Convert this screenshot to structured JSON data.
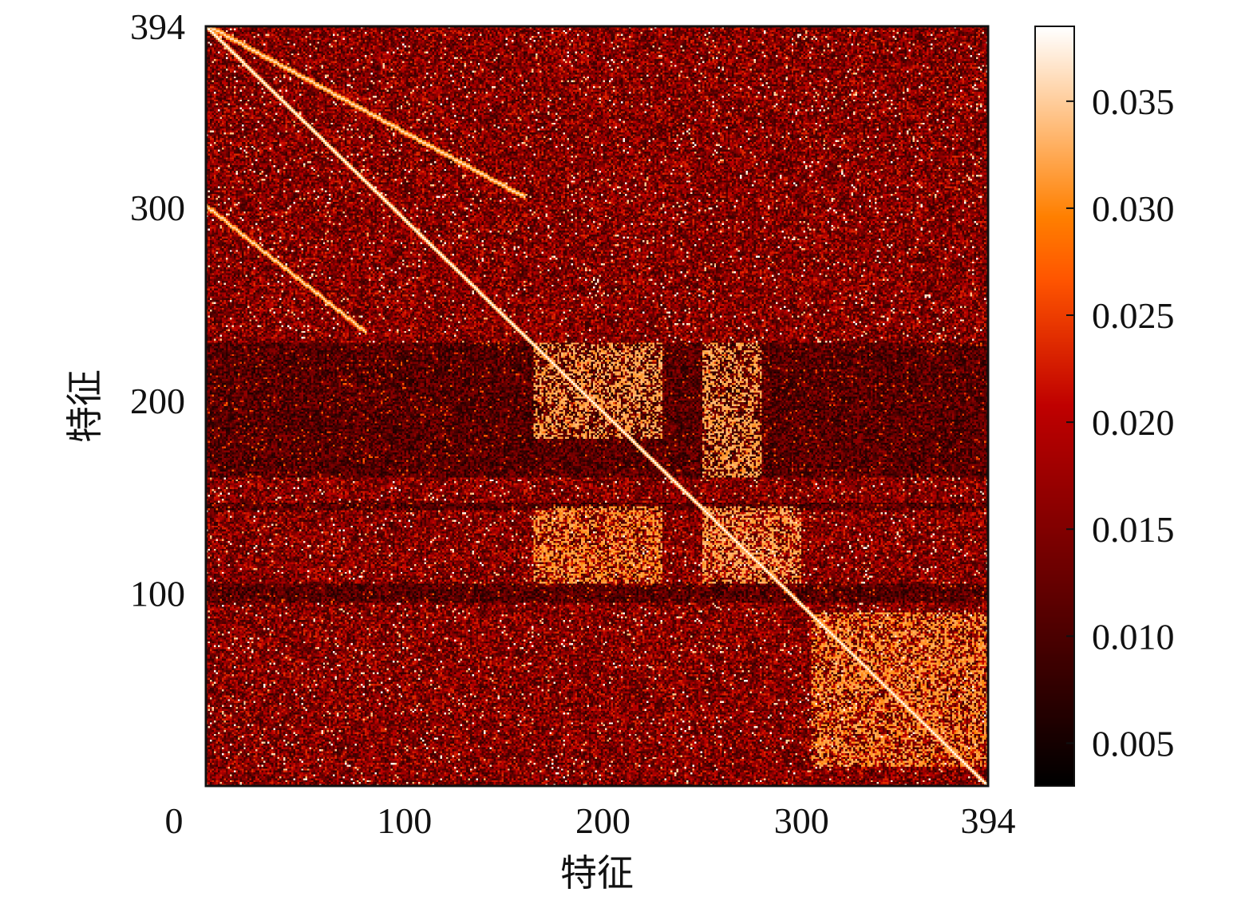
{
  "chart_data": {
    "type": "heatmap",
    "title": "",
    "xlabel": "特征",
    "ylabel": "特征",
    "n_features": 394,
    "xlim": [
      0,
      394
    ],
    "ylim": [
      0,
      394
    ],
    "x_ticks": [
      0,
      100,
      200,
      300,
      394
    ],
    "x_tick_labels": [
      "0",
      "100",
      "200",
      "300",
      "394"
    ],
    "y_ticks": [
      100,
      200,
      300,
      394
    ],
    "y_tick_labels": [
      "100",
      "200",
      "300",
      "394"
    ],
    "colorbar": {
      "colormap": "gist_heat",
      "vmin": 0.003,
      "vmax": 0.0385,
      "ticks": [
        0.005,
        0.01,
        0.015,
        0.02,
        0.025,
        0.03,
        0.035
      ],
      "tick_labels": [
        "0.005",
        "0.010",
        "0.015",
        "0.020",
        "0.025",
        "0.030",
        "0.035"
      ]
    },
    "grid": false,
    "diagonal_value": 0.0385,
    "background_value_range": [
      0.008,
      0.024
    ],
    "off_diagonal_bands": [
      {
        "x_range": [
          0,
          160
        ],
        "y_range": [
          394,
          305
        ],
        "value": 0.036
      },
      {
        "x_range": [
          0,
          80
        ],
        "y_range": [
          300,
          235
        ],
        "value": 0.036
      }
    ],
    "high_value_blocks": [
      {
        "x_range": [
          165,
          230
        ],
        "y_range": [
          230,
          180
        ],
        "value": 0.034
      },
      {
        "x_range": [
          250,
          280
        ],
        "y_range": [
          230,
          160
        ],
        "value": 0.034
      },
      {
        "x_range": [
          165,
          230
        ],
        "y_range": [
          145,
          105
        ],
        "value": 0.033
      },
      {
        "x_range": [
          250,
          300
        ],
        "y_range": [
          145,
          105
        ],
        "value": 0.034
      },
      {
        "x_range": [
          305,
          395
        ],
        "y_range": [
          90,
          10
        ],
        "value": 0.033
      }
    ],
    "dark_bands": [
      {
        "axis": "y",
        "range": [
          95,
          105
        ]
      },
      {
        "axis": "y",
        "range": [
          143,
          147
        ]
      },
      {
        "axis": "y",
        "range": [
          160,
          230
        ]
      }
    ]
  }
}
